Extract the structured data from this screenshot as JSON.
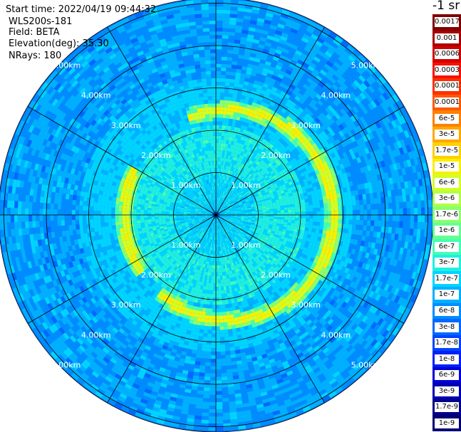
{
  "info": {
    "start_time": "Start time: 2022/04/19 09:44:32",
    "instrument": "WLS200s-181",
    "field": "Field: BETA",
    "elevation": "Elevation(deg): 35.30",
    "nrays": "NRays: 180"
  },
  "colorbar": {
    "unit": "-1 sr",
    "levels": [
      {
        "label": "0.0017",
        "color": "#800000"
      },
      {
        "label": "0.001",
        "color": "#a80000"
      },
      {
        "label": "0.0006",
        "color": "#d40000"
      },
      {
        "label": "0.0003",
        "color": "#f81000"
      },
      {
        "label": "0.00017",
        "color": "#ff3000"
      },
      {
        "label": "0.0001",
        "color": "#ff5800"
      },
      {
        "label": "6e-5",
        "color": "#ff8000"
      },
      {
        "label": "3e-5",
        "color": "#ffa800"
      },
      {
        "label": "1.7e-5",
        "color": "#ffd000"
      },
      {
        "label": "1e-5",
        "color": "#f8f000"
      },
      {
        "label": "6e-6",
        "color": "#d4ff22"
      },
      {
        "label": "3e-6",
        "color": "#b0ff48"
      },
      {
        "label": "1.7e-6",
        "color": "#8cff6c"
      },
      {
        "label": "1e-6",
        "color": "#66ff90"
      },
      {
        "label": "6e-7",
        "color": "#42ffb4"
      },
      {
        "label": "3e-7",
        "color": "#20f0e0"
      },
      {
        "label": "1.7e-7",
        "color": "#00d4ff"
      },
      {
        "label": "1e-7",
        "color": "#00b0ff"
      },
      {
        "label": "6e-8",
        "color": "#008cff"
      },
      {
        "label": "3e-8",
        "color": "#0068ff"
      },
      {
        "label": "1.7e-8",
        "color": "#0044ff"
      },
      {
        "label": "1e-8",
        "color": "#0020f8"
      },
      {
        "label": "6e-9",
        "color": "#0000d8"
      },
      {
        "label": "3e-9",
        "color": "#0000b0"
      },
      {
        "label": "1.7e-9",
        "color": "#00008c"
      },
      {
        "label": "1e-9",
        "color": "#000070"
      }
    ]
  },
  "rings": [
    {
      "label": "1.00km",
      "km": 1
    },
    {
      "label": "2.00km",
      "km": 2
    },
    {
      "label": "3.00km",
      "km": 3
    },
    {
      "label": "4.00km",
      "km": 4
    },
    {
      "label": "5.00km",
      "km": 5
    }
  ],
  "chart_data": {
    "type": "heatmap",
    "projection": "polar",
    "field": "BETA",
    "n_rays": 180,
    "max_range_km": 5.1,
    "aerosol_layer_radius_km": [
      2.0,
      2.7
    ],
    "gates_per_ray": 60
  }
}
